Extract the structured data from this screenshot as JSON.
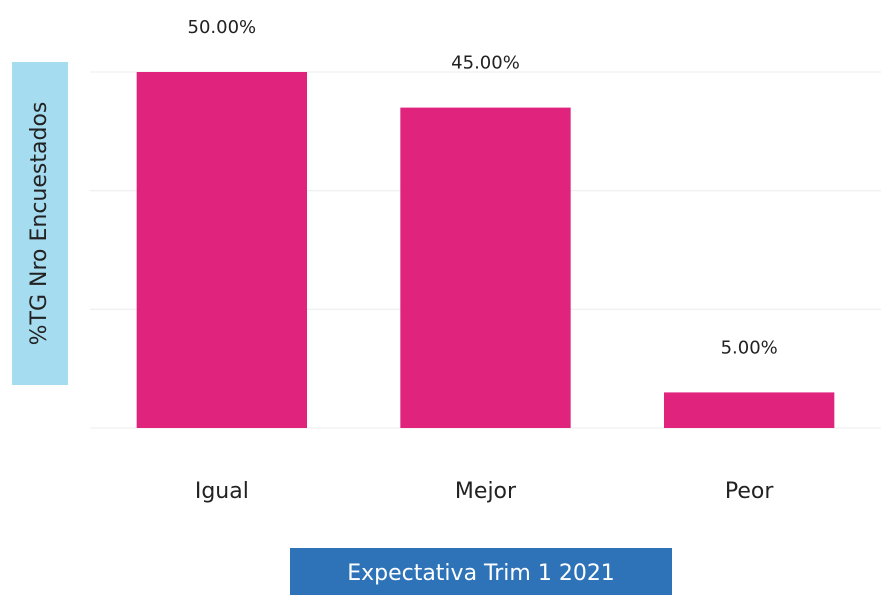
{
  "chart_data": {
    "type": "bar",
    "categories": [
      "Igual",
      "Mejor",
      "Peor"
    ],
    "values": [
      50,
      45,
      5
    ],
    "value_labels": [
      "50.00%",
      "45.00%",
      "5.00%"
    ],
    "color": "#e0247e",
    "xlabel": "Expectativa Trim 1 2021",
    "ylabel": "%TG Nro Encuestados",
    "ylim": [
      0,
      50
    ],
    "yticks": [
      0,
      16.67,
      33.33,
      50
    ],
    "grid": true
  }
}
